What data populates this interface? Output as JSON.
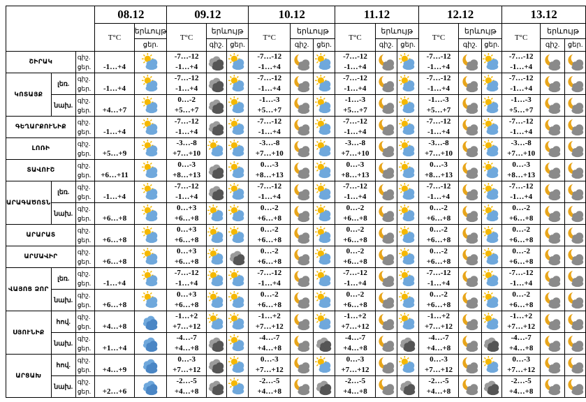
{
  "dates": [
    "08.12",
    "09.12",
    "10.12",
    "11.12",
    "12.12",
    "13.12"
  ],
  "head": {
    "temp": "T°C",
    "cloud": "երևույթ",
    "day": "ցեր.",
    "night": "գիշ.",
    "day_short": "ցեր."
  },
  "labels": {
    "night": "գիշ.",
    "day": "ցեր."
  },
  "rows": [
    {
      "region": "ՇԻՐԱԿ",
      "zone": "",
      "rowspan": 1,
      "t08": [
        "",
        "-1…+4"
      ],
      "i08": "sun-cloud-icon",
      "t": [
        [
          "-7…-12",
          "-1…+4"
        ],
        [
          "-7…-12",
          "-1…+4"
        ],
        [
          "-7…-12",
          "-1…+4"
        ],
        [
          "-7…-12",
          "-1…+4"
        ],
        [
          "-7…-12",
          "-1…+4"
        ]
      ],
      "iconsN": [
        "dark-clouds-icon",
        "moon-cloud-icon",
        "moon-cloud-icon",
        "moon-cloud-icon",
        "moon-cloud-icon"
      ],
      "iconsD": [
        "sun-cloud-icon",
        "sun-cloud-icon",
        "sun-cloud-icon",
        "sun-cloud-icon",
        ""
      ]
    },
    {
      "region": "ԿՈՏԱՅՔ",
      "zone": "լեռ.",
      "rowspan": 2,
      "t08": [
        "",
        "-1…+4"
      ],
      "i08": "sun-cloud-icon",
      "t": [
        [
          "-7…-12",
          "-1…+4"
        ],
        [
          "-7…-12",
          "-1…+4"
        ],
        [
          "-7…-12",
          "-1…+4"
        ],
        [
          "-7…-12",
          "-1…+4"
        ],
        [
          "-7…-12",
          "-1…+4"
        ]
      ],
      "iconsN": [
        "dark-clouds-icon",
        "moon-cloud-icon",
        "moon-cloud-icon",
        "moon-cloud-icon",
        "moon-cloud-icon"
      ],
      "iconsD": [
        "sun-cloud-icon",
        "sun-cloud-icon",
        "sun-cloud-icon",
        "sun-cloud-icon",
        ""
      ]
    },
    {
      "region": "",
      "zone": "նախ.",
      "rowspan": 0,
      "t08": [
        "",
        "+4…+7"
      ],
      "i08": "sun-cloud-icon",
      "t": [
        [
          "0…-2",
          "+5…+7"
        ],
        [
          "-1…-3",
          "+5…+7"
        ],
        [
          "-1…-3",
          "+5…+7"
        ],
        [
          "-1…-3",
          "+5…+7"
        ],
        [
          "-1…-3",
          "+5…+7"
        ]
      ],
      "iconsN": [
        "dark-clouds-icon",
        "moon-cloud-icon",
        "moon-cloud-icon",
        "moon-cloud-icon",
        "moon-cloud-icon"
      ],
      "iconsD": [
        "sun-cloud-icon",
        "sun-cloud-icon",
        "sun-cloud-icon",
        "sun-cloud-icon",
        ""
      ]
    },
    {
      "region": "ԳԵՂԱՐՔՈՒՆԻՔ",
      "zone": "",
      "rowspan": 1,
      "t08": [
        "",
        "-1…+4"
      ],
      "i08": "sun-cloud-icon",
      "t": [
        [
          "-7…-12",
          "-1…+4"
        ],
        [
          "-7…-12",
          "-1…+4"
        ],
        [
          "-7…-12",
          "-1…+4"
        ],
        [
          "-7…-12",
          "-1…+4"
        ],
        [
          "-7…-12",
          "-1…+4"
        ]
      ],
      "iconsN": [
        "dark-clouds-icon",
        "moon-cloud-icon",
        "moon-cloud-icon",
        "moon-cloud-icon",
        "moon-cloud-icon"
      ],
      "iconsD": [
        "sun-cloud-icon",
        "sun-cloud-icon",
        "sun-cloud-icon",
        "sun-cloud-icon",
        ""
      ]
    },
    {
      "region": "ԼՈՌԻ",
      "zone": "",
      "rowspan": 1,
      "t08": [
        "",
        "+5…+9"
      ],
      "i08": "sun-cloud-icon",
      "t": [
        [
          "-3…-8",
          "+7…+10"
        ],
        [
          "-3…-8",
          "+7…+10"
        ],
        [
          "-3…-8",
          "+7…+10"
        ],
        [
          "-3…-8",
          "+7…+10"
        ],
        [
          "-3…-8",
          "+7…+10"
        ]
      ],
      "iconsN": [
        "sun-cloud-icon",
        "moon-cloud-icon",
        "moon-cloud-icon",
        "moon-cloud-icon",
        "moon-cloud-icon"
      ],
      "iconsD": [
        "sun-cloud-icon",
        "sun-cloud-icon",
        "sun-cloud-icon",
        "sun-cloud-icon",
        ""
      ]
    },
    {
      "region": "ՏԱՎՈՒՇ",
      "zone": "",
      "rowspan": 1,
      "t08": [
        "",
        "+6…+11"
      ],
      "i08": "sun-cloud-icon",
      "t": [
        [
          "0…-3",
          "+8…+13"
        ],
        [
          "0…-3",
          "+8…+13"
        ],
        [
          "0…-3",
          "+8…+13"
        ],
        [
          "0…-3",
          "+8…+13"
        ],
        [
          "0…-3",
          "+8…+13"
        ]
      ],
      "iconsN": [
        "dark-clouds-icon",
        "moon-cloud-icon",
        "moon-cloud-icon",
        "moon-cloud-icon",
        "moon-cloud-icon"
      ],
      "iconsD": [
        "sun-cloud-icon",
        "sun-cloud-icon",
        "sun-cloud-icon",
        "sun-cloud-icon",
        ""
      ]
    },
    {
      "region": "ԱՐԱԳԱԾՈՏՆ",
      "zone": "լեռ.",
      "rowspan": 2,
      "t08": [
        "",
        "-1…+4"
      ],
      "i08": "sun-cloud-icon",
      "t": [
        [
          "-7…-12",
          "-1…+4"
        ],
        [
          "-7…-12",
          "-1…+4"
        ],
        [
          "-7…-12",
          "-1…+4"
        ],
        [
          "-7…-12",
          "-1…+4"
        ],
        [
          "-7…-12",
          "-1…+4"
        ]
      ],
      "iconsN": [
        "dark-clouds-icon",
        "moon-cloud-icon",
        "moon-cloud-icon",
        "moon-cloud-icon",
        "moon-cloud-icon"
      ],
      "iconsD": [
        "sun-cloud-icon",
        "sun-cloud-icon",
        "sun-cloud-icon",
        "sun-cloud-icon",
        ""
      ]
    },
    {
      "region": "",
      "zone": "նախ.",
      "rowspan": 0,
      "t08": [
        "",
        "+6…+8"
      ],
      "i08": "sun-cloud-icon",
      "t": [
        [
          "0…+3",
          "+6…+8"
        ],
        [
          "0…-2",
          "+6…+8"
        ],
        [
          "0…-2",
          "+6…+8"
        ],
        [
          "0…-2",
          "+6…+8"
        ],
        [
          "0…-2",
          "+6…+8"
        ]
      ],
      "iconsN": [
        "sun-cloud-icon",
        "moon-cloud-icon",
        "moon-cloud-icon",
        "moon-cloud-icon",
        "moon-cloud-icon"
      ],
      "iconsD": [
        "sun-cloud-icon",
        "sun-cloud-icon",
        "sun-cloud-icon",
        "sun-cloud-icon",
        ""
      ]
    },
    {
      "region": "ԱՐԱՐԱՏ",
      "zone": "",
      "rowspan": 1,
      "t08": [
        "",
        "+6…+8"
      ],
      "i08": "sun-cloud-icon",
      "t": [
        [
          "0…+3",
          "+6…+8"
        ],
        [
          "0…-2",
          "+6…+8"
        ],
        [
          "0…-2",
          "+6…+8"
        ],
        [
          "0…-2",
          "+6…+8"
        ],
        [
          "0…-2",
          "+6…+8"
        ]
      ],
      "iconsN": [
        "sun-cloud-icon",
        "moon-cloud-icon",
        "moon-cloud-icon",
        "moon-cloud-icon",
        "moon-cloud-icon"
      ],
      "iconsD": [
        "sun-cloud-icon",
        "sun-cloud-icon",
        "sun-cloud-icon",
        "sun-cloud-icon",
        ""
      ]
    },
    {
      "region": "ԱՐՄԱՎԻՐ",
      "zone": "",
      "rowspan": 1,
      "t08": [
        "",
        "+6…+8"
      ],
      "i08": "sun-cloud-icon",
      "t": [
        [
          "0…+3",
          "+6…+8"
        ],
        [
          "0…-2",
          "+6…+8"
        ],
        [
          "0…-2",
          "+6…+8"
        ],
        [
          "0…-2",
          "+6…+8"
        ],
        [
          "0…-2",
          "+6…+8"
        ]
      ],
      "iconsN": [
        "sun-cloud-icon",
        "moon-cloud-icon",
        "moon-cloud-icon",
        "moon-cloud-icon",
        "moon-cloud-icon"
      ],
      "iconsD": [
        "dark-clouds-icon",
        "sun-cloud-icon",
        "sun-cloud-icon",
        "sun-cloud-icon",
        ""
      ]
    },
    {
      "region": "ՎԱՅՈՑ ՁՈՐ",
      "zone": "լեռ.",
      "rowspan": 2,
      "t08": [
        "",
        "-1…+4"
      ],
      "i08": "sun-cloud-icon",
      "t": [
        [
          "-7…-12",
          "-1…+4"
        ],
        [
          "-7…-12",
          "-1…+4"
        ],
        [
          "-7…-12",
          "-1…+4"
        ],
        [
          "-7…-12",
          "-1…+4"
        ],
        [
          "-7…-12",
          "-1…+4"
        ]
      ],
      "iconsN": [
        "sun-cloud-icon",
        "moon-cloud-icon",
        "moon-cloud-icon",
        "moon-cloud-icon",
        "moon-cloud-icon"
      ],
      "iconsD": [
        "sun-cloud-icon",
        "sun-cloud-icon",
        "sun-cloud-icon",
        "sun-cloud-icon",
        ""
      ]
    },
    {
      "region": "",
      "zone": "նախ.",
      "rowspan": 0,
      "t08": [
        "",
        "+6…+8"
      ],
      "i08": "sun-cloud-icon",
      "t": [
        [
          "0…+3",
          "+6…+8"
        ],
        [
          "0…-2",
          "+6…+8"
        ],
        [
          "0…-2",
          "+6…+8"
        ],
        [
          "0…-2",
          "+6…+8"
        ],
        [
          "0…-2",
          "+6…+8"
        ]
      ],
      "iconsN": [
        "sun-cloud-icon",
        "moon-cloud-icon",
        "moon-cloud-icon",
        "moon-cloud-icon",
        "moon-cloud-icon"
      ],
      "iconsD": [
        "sun-cloud-icon",
        "sun-cloud-icon",
        "sun-cloud-icon",
        "sun-cloud-icon",
        ""
      ]
    },
    {
      "region": "ՍՅՈՒՆԻՔ",
      "zone": "հով.",
      "rowspan": 2,
      "t08": [
        "",
        "+4…+8"
      ],
      "i08": "cloud-icon",
      "t": [
        [
          "-1…+2",
          "+7…+12"
        ],
        [
          "-1…+2",
          "+7…+12"
        ],
        [
          "-1…+2",
          "+7…+12"
        ],
        [
          "-1…+2",
          "+7…+12"
        ],
        [
          "-1…+2",
          "+7…+12"
        ]
      ],
      "iconsN": [
        "sun-cloud-icon",
        "moon-cloud-icon",
        "moon-cloud-icon",
        "moon-cloud-icon",
        "moon-cloud-icon"
      ],
      "iconsD": [
        "sun-cloud-icon",
        "sun-cloud-icon",
        "sun-cloud-icon",
        "sun-cloud-icon",
        ""
      ]
    },
    {
      "region": "",
      "zone": "նախ.",
      "rowspan": 0,
      "t08": [
        "",
        "+1…+4"
      ],
      "i08": "cloud-icon",
      "t": [
        [
          "-4…-7",
          "+4…+8"
        ],
        [
          "-4…-7",
          "+4…+8"
        ],
        [
          "-4…-7",
          "+4…+8"
        ],
        [
          "-4…-7",
          "+4…+8"
        ],
        [
          "-4…-7",
          "+4…+8"
        ]
      ],
      "iconsN": [
        "dark-clouds-icon",
        "moon-cloud-icon",
        "moon-cloud-icon",
        "moon-cloud-icon",
        "moon-cloud-icon"
      ],
      "iconsD": [
        "sun-cloud-icon",
        "dark-clouds-icon",
        "dark-clouds-icon",
        "dark-clouds-icon",
        ""
      ]
    },
    {
      "region": "ԱՐՑԱԽ",
      "zone": "հով.",
      "rowspan": 2,
      "t08": [
        "",
        "+4…+9"
      ],
      "i08": "cloud-icon",
      "t": [
        [
          "0…-3",
          "+7…+12"
        ],
        [
          "0…-3",
          "+7…+12"
        ],
        [
          "0…-3",
          "+7…+12"
        ],
        [
          "0…-3",
          "+7…+12"
        ],
        [
          "0…-3",
          "+7…+12"
        ]
      ],
      "iconsN": [
        "dark-clouds-icon",
        "moon-cloud-icon",
        "moon-cloud-icon",
        "moon-cloud-icon",
        "moon-cloud-icon"
      ],
      "iconsD": [
        "sun-cloud-icon",
        "sun-cloud-icon",
        "sun-cloud-icon",
        "sun-cloud-icon",
        ""
      ]
    },
    {
      "region": "",
      "zone": "նախ.",
      "rowspan": 0,
      "t08": [
        "",
        "+2…+6"
      ],
      "i08": "cloud-icon",
      "t": [
        [
          "-2…-5",
          "+4…+8"
        ],
        [
          "-2…-5",
          "+4…+8"
        ],
        [
          "-2…-5",
          "+4…+8"
        ],
        [
          "-2…-5",
          "+4…+8"
        ],
        [
          "-2…-5",
          "+4…+8"
        ]
      ],
      "iconsN": [
        "dark-clouds-icon",
        "moon-cloud-icon",
        "moon-cloud-icon",
        "moon-cloud-icon",
        "moon-cloud-icon"
      ],
      "iconsD": [
        "sun-cloud-icon",
        "dark-clouds-icon",
        "dark-clouds-icon",
        "dark-clouds-icon",
        ""
      ]
    }
  ],
  "colors": {
    "sun": "#f5b800",
    "cloud": "#6fa8dc",
    "dark": "#555555",
    "moon": "#e8a51a"
  }
}
